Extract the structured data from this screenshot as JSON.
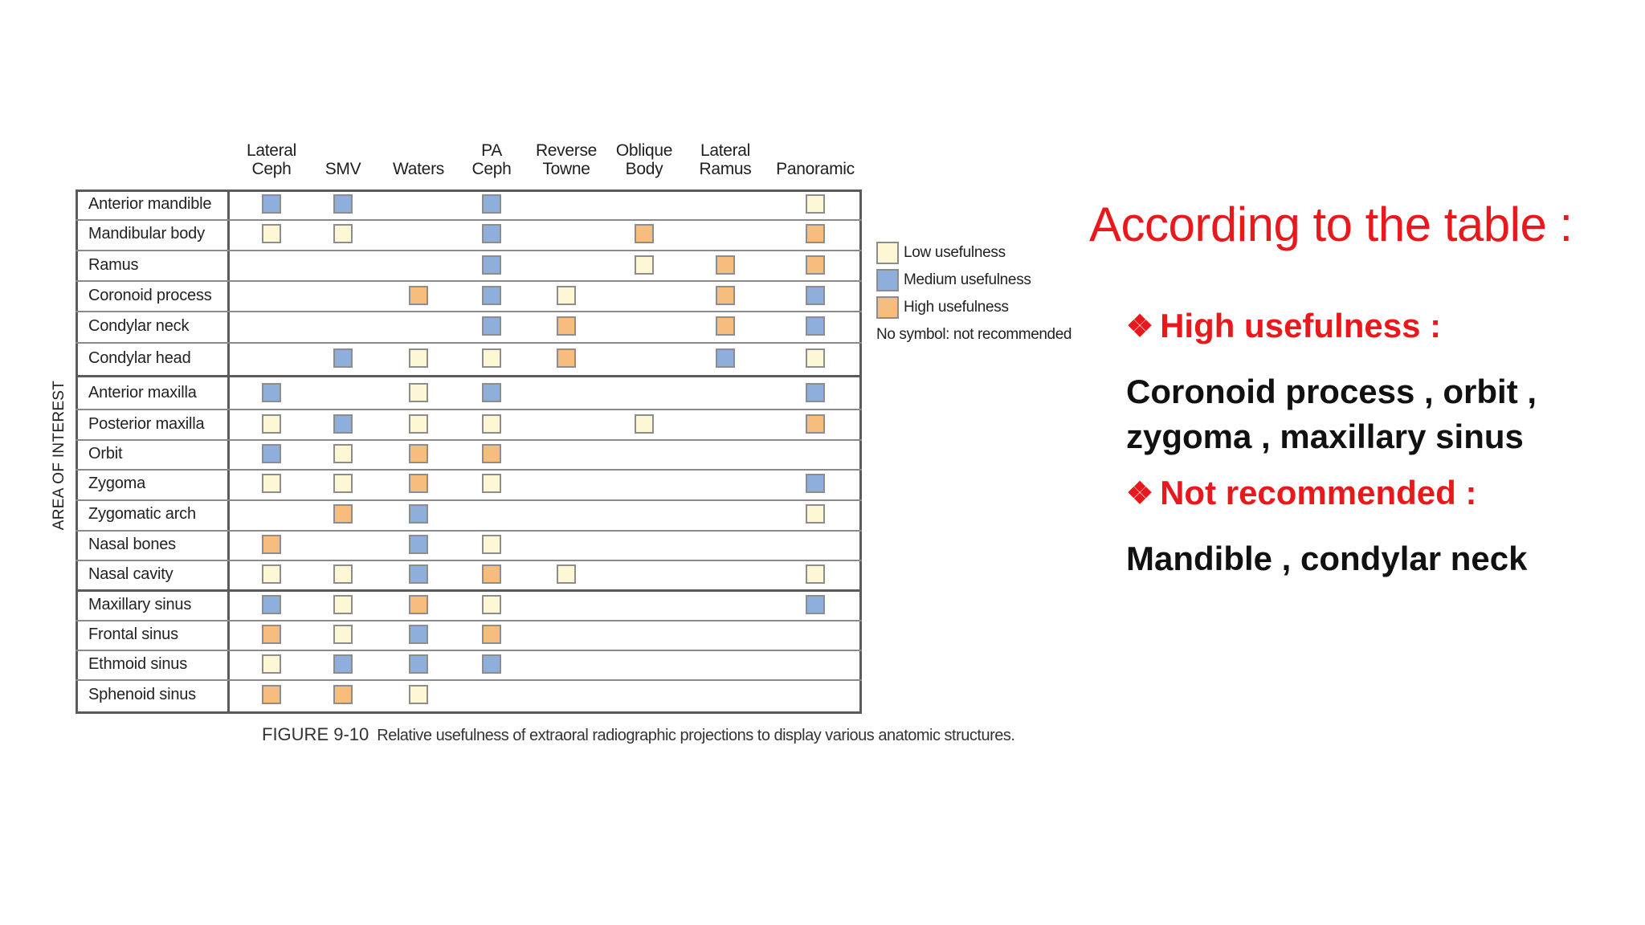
{
  "columns": [
    {
      "label_lines": [
        "Lateral",
        "Ceph"
      ]
    },
    {
      "label_lines": [
        "SMV"
      ]
    },
    {
      "label_lines": [
        "Waters"
      ]
    },
    {
      "label_lines": [
        "PA",
        "Ceph"
      ]
    },
    {
      "label_lines": [
        "Reverse",
        "Towne"
      ]
    },
    {
      "label_lines": [
        "Oblique",
        "Body"
      ]
    },
    {
      "label_lines": [
        "Lateral",
        "Ramus"
      ]
    },
    {
      "label_lines": [
        "Panoramic"
      ]
    }
  ],
  "axis_label": "AREA OF INTEREST",
  "rows": [
    {
      "label": "Anterior mandible",
      "cells": [
        "medium",
        "medium",
        "",
        "medium",
        "",
        "",
        "",
        "low"
      ]
    },
    {
      "label": "Mandibular body",
      "cells": [
        "low",
        "low",
        "",
        "medium",
        "",
        "high",
        "",
        "high"
      ]
    },
    {
      "label": "Ramus",
      "cells": [
        "",
        "",
        "",
        "medium",
        "",
        "low",
        "high",
        "high"
      ]
    },
    {
      "label": "Coronoid process",
      "cells": [
        "",
        "",
        "high",
        "medium",
        "low",
        "",
        "high",
        "medium"
      ]
    },
    {
      "label": "Condylar neck",
      "cells": [
        "",
        "",
        "",
        "medium",
        "high",
        "",
        "high",
        "medium"
      ]
    },
    {
      "label": "Condylar head",
      "cells": [
        "",
        "medium",
        "low",
        "low",
        "high",
        "",
        "medium",
        "low"
      ]
    },
    {
      "label": "Anterior maxilla",
      "cells": [
        "medium",
        "",
        "low",
        "medium",
        "",
        "",
        "",
        "medium"
      ]
    },
    {
      "label": "Posterior maxilla",
      "cells": [
        "low",
        "medium",
        "low",
        "low",
        "",
        "low",
        "",
        "high"
      ]
    },
    {
      "label": "Orbit",
      "cells": [
        "medium",
        "low",
        "high",
        "high",
        "",
        "",
        "",
        ""
      ]
    },
    {
      "label": "Zygoma",
      "cells": [
        "low",
        "low",
        "high",
        "low",
        "",
        "",
        "",
        "medium"
      ]
    },
    {
      "label": "Zygomatic arch",
      "cells": [
        "",
        "high",
        "medium",
        "",
        "",
        "",
        "",
        "low"
      ]
    },
    {
      "label": "Nasal bones",
      "cells": [
        "high",
        "",
        "medium",
        "low",
        "",
        "",
        "",
        ""
      ]
    },
    {
      "label": "Nasal cavity",
      "cells": [
        "low",
        "low",
        "medium",
        "high",
        "low",
        "",
        "",
        "low"
      ]
    },
    {
      "label": "Maxillary sinus",
      "cells": [
        "medium",
        "low",
        "high",
        "low",
        "",
        "",
        "",
        "medium"
      ]
    },
    {
      "label": "Frontal sinus",
      "cells": [
        "high",
        "low",
        "medium",
        "high",
        "",
        "",
        "",
        ""
      ]
    },
    {
      "label": "Ethmoid sinus",
      "cells": [
        "low",
        "medium",
        "medium",
        "medium",
        "",
        "",
        "",
        ""
      ]
    },
    {
      "label": "Sphenoid sinus",
      "cells": [
        "high",
        "high",
        "low",
        "",
        "",
        "",
        "",
        ""
      ]
    }
  ],
  "legend": {
    "low": "Low usefulness",
    "medium": "Medium usefulness",
    "high": "High usefulness",
    "none": "No symbol: not recommended"
  },
  "colors": {
    "low": "#fdf7d6",
    "medium": "#8eaedb",
    "high": "#f6bd7e",
    "accent": "#e8191c"
  },
  "caption": {
    "label": "FIGURE 9-10",
    "text": "Relative usefulness of extraoral radiographic projections to display various anatomic structures."
  },
  "right_panel": {
    "title": "According to the table :",
    "bullet_icon": "diamond-bullet-icon",
    "high_heading": "High usefulness :",
    "high_lines": [
      "Coronoid process , orbit ,",
      "zygoma , maxillary sinus"
    ],
    "not_heading": "Not recommended :",
    "not_lines": [
      "Mandible , condylar neck"
    ]
  }
}
